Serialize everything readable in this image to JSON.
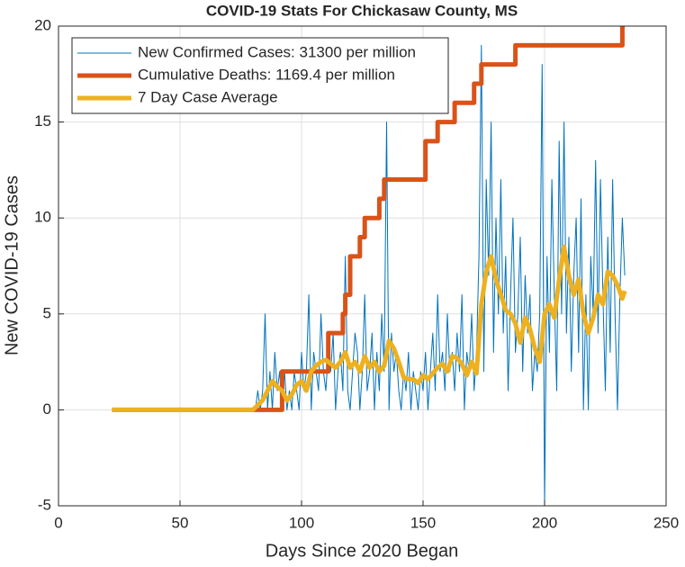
{
  "chart_data": {
    "type": "line",
    "title": "COVID-19 Stats For Chickasaw County, MS",
    "x_label": "Days Since 2020 Began",
    "y_label": "New COVID-19 Cases",
    "xlim": [
      0,
      250
    ],
    "xticks": [
      0,
      50,
      100,
      150,
      200,
      250
    ],
    "ylim": [
      -5,
      20
    ],
    "yticks": [
      -5,
      0,
      5,
      10,
      15,
      20
    ],
    "grid": true,
    "legend": "northwest",
    "series": [
      {
        "name": "New Confirmed Cases: 31300 per million",
        "color": "#0072bd",
        "width": 1,
        "x": [
          22,
          80,
          81,
          82,
          83,
          84,
          85,
          86,
          87,
          88,
          89,
          90,
          91,
          92,
          93,
          94,
          95,
          96,
          97,
          98,
          99,
          100,
          101,
          102,
          103,
          104,
          105,
          106,
          107,
          108,
          109,
          110,
          111,
          112,
          113,
          114,
          115,
          116,
          117,
          118,
          119,
          120,
          121,
          122,
          123,
          124,
          125,
          126,
          127,
          128,
          129,
          130,
          131,
          132,
          133,
          134,
          135,
          136,
          137,
          138,
          139,
          140,
          141,
          142,
          143,
          144,
          145,
          146,
          147,
          148,
          149,
          150,
          151,
          152,
          153,
          154,
          155,
          156,
          157,
          158,
          159,
          160,
          161,
          162,
          163,
          164,
          165,
          166,
          167,
          168,
          169,
          170,
          171,
          172,
          173,
          174,
          175,
          176,
          177,
          178,
          179,
          180,
          181,
          182,
          183,
          184,
          185,
          186,
          187,
          188,
          189,
          190,
          191,
          192,
          193,
          194,
          195,
          196,
          197,
          198,
          199,
          200,
          201,
          202,
          203,
          204,
          205,
          206,
          207,
          208,
          209,
          210,
          211,
          212,
          213,
          214,
          215,
          216,
          217,
          218,
          219,
          220,
          221,
          222,
          223,
          224,
          225,
          226,
          227,
          228,
          229,
          230,
          231,
          232,
          233
        ],
        "values": [
          0,
          0,
          0,
          1,
          0,
          1,
          5,
          0,
          2,
          0,
          3,
          1,
          2,
          0,
          2,
          0,
          1,
          0,
          2,
          1,
          0,
          3,
          1,
          2,
          6,
          0,
          3,
          2,
          1,
          5,
          2,
          1,
          3,
          2,
          4,
          0,
          2,
          3,
          1,
          8,
          1,
          0,
          2,
          4,
          3,
          0,
          2,
          6,
          1,
          2,
          4,
          0,
          3,
          1,
          5,
          2,
          15,
          0,
          4,
          2,
          3,
          1,
          0,
          2,
          1,
          3,
          0,
          2,
          1,
          0,
          2,
          1,
          3,
          0,
          2,
          4,
          1,
          6,
          2,
          3,
          1,
          5,
          2,
          3,
          1,
          4,
          2,
          6,
          0,
          3,
          2,
          5,
          1,
          3,
          8,
          19,
          2,
          12,
          7,
          15,
          3,
          10,
          5,
          12,
          4,
          8,
          1,
          6,
          10,
          3,
          5,
          9,
          2,
          7,
          4,
          6,
          1,
          3,
          2,
          5,
          18,
          -5,
          8,
          3,
          12,
          6,
          1,
          14,
          5,
          15,
          4,
          9,
          2,
          7,
          10,
          3,
          11,
          0,
          6,
          0,
          8,
          5,
          13,
          4,
          12,
          6,
          1,
          9,
          3,
          12,
          5,
          0,
          6,
          10,
          7
        ]
      },
      {
        "name": "Cumulative Deaths: 1169.4 per million",
        "color": "#d95319",
        "width": 5,
        "x": [
          22,
          92,
          92,
          111,
          111,
          117,
          117,
          118,
          118,
          120,
          120,
          124,
          124,
          126,
          126,
          132,
          132,
          134,
          134,
          151,
          151,
          156,
          156,
          163,
          163,
          171,
          171,
          174,
          174,
          188,
          188,
          232,
          232,
          233
        ],
        "values": [
          0,
          0,
          2,
          2,
          4,
          4,
          5,
          5,
          6,
          6,
          8,
          8,
          9,
          9,
          10,
          10,
          11,
          11,
          12,
          12,
          14,
          14,
          15,
          15,
          16,
          16,
          17,
          17,
          18,
          18,
          19,
          19,
          20,
          20
        ]
      },
      {
        "name": "7 Day Case Average",
        "color": "#edb120",
        "width": 5,
        "x": [
          22,
          80,
          84,
          86,
          88,
          90,
          92,
          94,
          96,
          98,
          100,
          102,
          104,
          106,
          108,
          110,
          112,
          114,
          116,
          118,
          120,
          122,
          124,
          126,
          128,
          130,
          132,
          134,
          136,
          138,
          140,
          142,
          144,
          146,
          148,
          150,
          152,
          154,
          156,
          158,
          160,
          162,
          164,
          166,
          168,
          170,
          172,
          174,
          176,
          178,
          180,
          182,
          184,
          186,
          188,
          190,
          192,
          194,
          196,
          198,
          200,
          202,
          204,
          206,
          208,
          210,
          212,
          214,
          216,
          218,
          220,
          222,
          224,
          226,
          228,
          230,
          232,
          233
        ],
        "values": [
          0,
          0,
          0.5,
          1.0,
          1.5,
          1.2,
          1.0,
          0.5,
          0.8,
          1.3,
          1.5,
          1.0,
          2.0,
          2.3,
          2.5,
          2.6,
          2.4,
          2.2,
          2.5,
          3.0,
          2.2,
          2.5,
          2.0,
          2.8,
          2.2,
          2.5,
          2.0,
          2.3,
          3.6,
          3.2,
          2.5,
          1.7,
          1.6,
          1.6,
          1.4,
          1.8,
          1.6,
          1.9,
          2.2,
          2.4,
          2.0,
          2.8,
          2.7,
          2.4,
          1.8,
          2.5,
          1.9,
          5.5,
          7.2,
          8.0,
          6.8,
          6.0,
          5.2,
          5.0,
          4.5,
          3.5,
          4.8,
          4.2,
          3.2,
          2.5,
          5.0,
          5.5,
          4.8,
          6.8,
          8.5,
          7.0,
          6.0,
          6.8,
          5.0,
          4.0,
          4.8,
          6.0,
          5.5,
          7.2,
          7.0,
          6.5,
          5.8,
          6.2
        ]
      }
    ]
  }
}
